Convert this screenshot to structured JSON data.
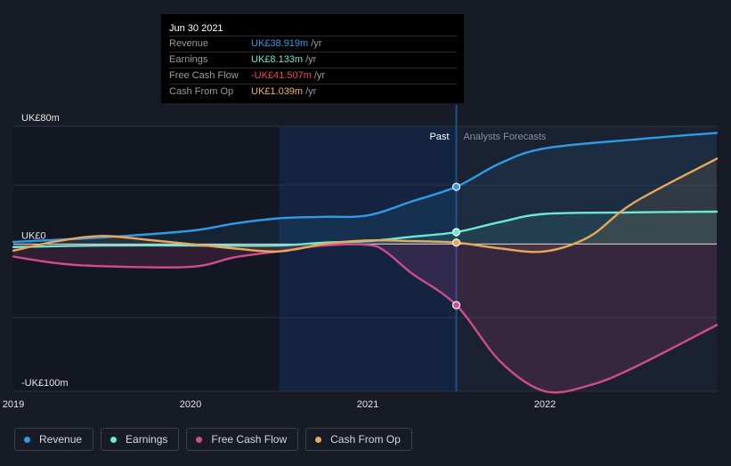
{
  "tooltip": {
    "date": "Jun 30 2021",
    "rows": [
      {
        "label": "Revenue",
        "value": "UK£38.919m",
        "unit": "/yr",
        "color": "#2f9be6"
      },
      {
        "label": "Earnings",
        "value": "UK£8.133m",
        "unit": "/yr",
        "color": "#6ee7d0"
      },
      {
        "label": "Free Cash Flow",
        "value": "-UK£41.507m",
        "unit": "/yr",
        "color": "#ef4a4a"
      },
      {
        "label": "Cash From Op",
        "value": "UK£1.039m",
        "unit": "/yr",
        "color": "#f2b45c"
      }
    ]
  },
  "legend": [
    {
      "label": "Revenue",
      "color": "#2f9be6"
    },
    {
      "label": "Earnings",
      "color": "#6ee7d0"
    },
    {
      "label": "Free Cash Flow",
      "color": "#cf4c8e"
    },
    {
      "label": "Cash From Op",
      "color": "#e8a85a"
    }
  ],
  "chart_data": {
    "type": "line",
    "y_labels": [
      {
        "text": "UK£80m",
        "value": 80
      },
      {
        "text": "UK£0",
        "value": 0
      },
      {
        "text": "-UK£100m",
        "value": -100
      }
    ],
    "ylim": [
      -100,
      80
    ],
    "xlim": [
      2019.0,
      2022.97
    ],
    "x_ticks": [
      {
        "text": "2019",
        "value": 2019
      },
      {
        "text": "2020",
        "value": 2020
      },
      {
        "text": "2021",
        "value": 2021
      },
      {
        "text": "2022",
        "value": 2022
      }
    ],
    "past_label": "Past",
    "forecast_label": "Analysts Forecasts",
    "divider_x": 2021.5,
    "highlight_start_x": 2020.5,
    "series": [
      {
        "name": "Revenue",
        "color": "#2f9be6",
        "x": [
          2019.0,
          2019.5,
          2020.0,
          2020.25,
          2020.5,
          2020.75,
          2021.0,
          2021.25,
          2021.5,
          2021.75,
          2022.0,
          2022.5,
          2022.97
        ],
        "y": [
          1.5,
          4.5,
          9,
          14,
          17.5,
          18.5,
          19.5,
          29,
          38.9,
          55,
          65,
          71,
          75.5
        ]
      },
      {
        "name": "Earnings",
        "color": "#6ee7d0",
        "x": [
          2019.0,
          2019.5,
          2020.0,
          2020.5,
          2020.75,
          2021.0,
          2021.25,
          2021.5,
          2021.75,
          2022.0,
          2022.5,
          2022.97
        ],
        "y": [
          -2,
          -1,
          -1,
          -1,
          1,
          2,
          5,
          8.1,
          15,
          20.5,
          21.5,
          22
        ]
      },
      {
        "name": "Free Cash Flow",
        "color": "#cf4c8e",
        "x": [
          2019.0,
          2019.25,
          2019.5,
          2020.0,
          2020.25,
          2020.5,
          2020.75,
          2021.0,
          2021.1,
          2021.25,
          2021.5,
          2021.75,
          2022.0,
          2022.25,
          2022.5,
          2022.97
        ],
        "y": [
          -8.5,
          -13,
          -15,
          -15.5,
          -9,
          -5,
          -1,
          -0.5,
          -5,
          -20,
          -41.5,
          -80,
          -100,
          -96,
          -84,
          -55
        ]
      },
      {
        "name": "Cash From Op",
        "color": "#e8a85a",
        "x": [
          2019.0,
          2019.25,
          2019.5,
          2019.75,
          2020.0,
          2020.25,
          2020.5,
          2020.75,
          2021.0,
          2021.25,
          2021.5,
          2021.75,
          2022.0,
          2022.25,
          2022.5,
          2022.97
        ],
        "y": [
          -4.5,
          2,
          5.5,
          3,
          0,
          -3,
          -5,
          0,
          2.5,
          2,
          1.0,
          -3,
          -5,
          5,
          28,
          58
        ]
      }
    ],
    "markers_x": 2021.5
  }
}
